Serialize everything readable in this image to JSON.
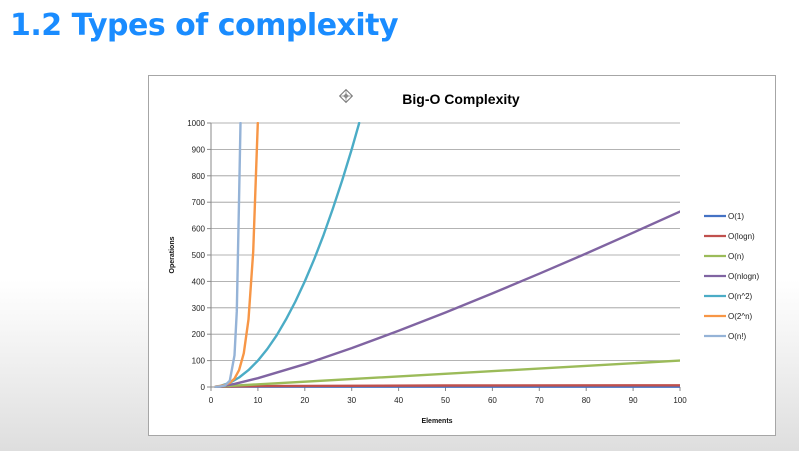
{
  "slide": {
    "title": "1.2 Types of complexity"
  },
  "chart_data": {
    "type": "line",
    "title": "Big-O Complexity",
    "xlabel": "Elements",
    "ylabel": "Operations",
    "xlim": [
      0,
      100
    ],
    "ylim": [
      0,
      1000
    ],
    "xticks": [
      "0",
      "10",
      "20",
      "30",
      "40",
      "50",
      "60",
      "70",
      "80",
      "90",
      "100"
    ],
    "yticks": [
      "0",
      "100",
      "200",
      "300",
      "400",
      "500",
      "600",
      "700",
      "800",
      "900",
      "1000"
    ],
    "grid": true,
    "legend_position": "right",
    "series": [
      {
        "name": "O(1)",
        "color": "#4472c4",
        "x": [
          1,
          100
        ],
        "y": [
          1,
          1
        ]
      },
      {
        "name": "O(logn)",
        "color": "#c0504d",
        "x": [
          1,
          2,
          5,
          10,
          20,
          50,
          100
        ],
        "y": [
          0,
          1,
          2.3,
          3.3,
          4.3,
          5.6,
          6.6
        ]
      },
      {
        "name": "O(n)",
        "color": "#9bbb59",
        "x": [
          1,
          100
        ],
        "y": [
          1,
          100
        ]
      },
      {
        "name": "O(nlogn)",
        "color": "#8064a2",
        "x": [
          1,
          2,
          5,
          10,
          20,
          30,
          40,
          50,
          60,
          70,
          80,
          90,
          100
        ],
        "y": [
          0,
          2,
          11.6,
          33.2,
          86.4,
          147.2,
          212.9,
          282.2,
          354.4,
          429.1,
          505.8,
          584.3,
          664.4
        ]
      },
      {
        "name": "O(n^2)",
        "color": "#4bacc6",
        "x": [
          1,
          2,
          4,
          6,
          8,
          10,
          12,
          14,
          16,
          18,
          20,
          22,
          24,
          26,
          28,
          30,
          31.6
        ],
        "y": [
          1,
          4,
          16,
          36,
          64,
          100,
          144,
          196,
          256,
          324,
          400,
          484,
          576,
          676,
          784,
          900,
          1000
        ]
      },
      {
        "name": "O(2^n)",
        "color": "#f79646",
        "x": [
          1,
          2,
          3,
          4,
          5,
          6,
          7,
          8,
          9,
          9.97
        ],
        "y": [
          2,
          4,
          8,
          16,
          32,
          64,
          128,
          256,
          512,
          1000
        ]
      },
      {
        "name": "O(n!)",
        "color": "#95b3d7",
        "x": [
          1,
          2,
          3,
          4,
          5,
          5.5,
          6,
          6.3
        ],
        "y": [
          1,
          2,
          6,
          24,
          120,
          287,
          720,
          1000
        ]
      }
    ]
  }
}
